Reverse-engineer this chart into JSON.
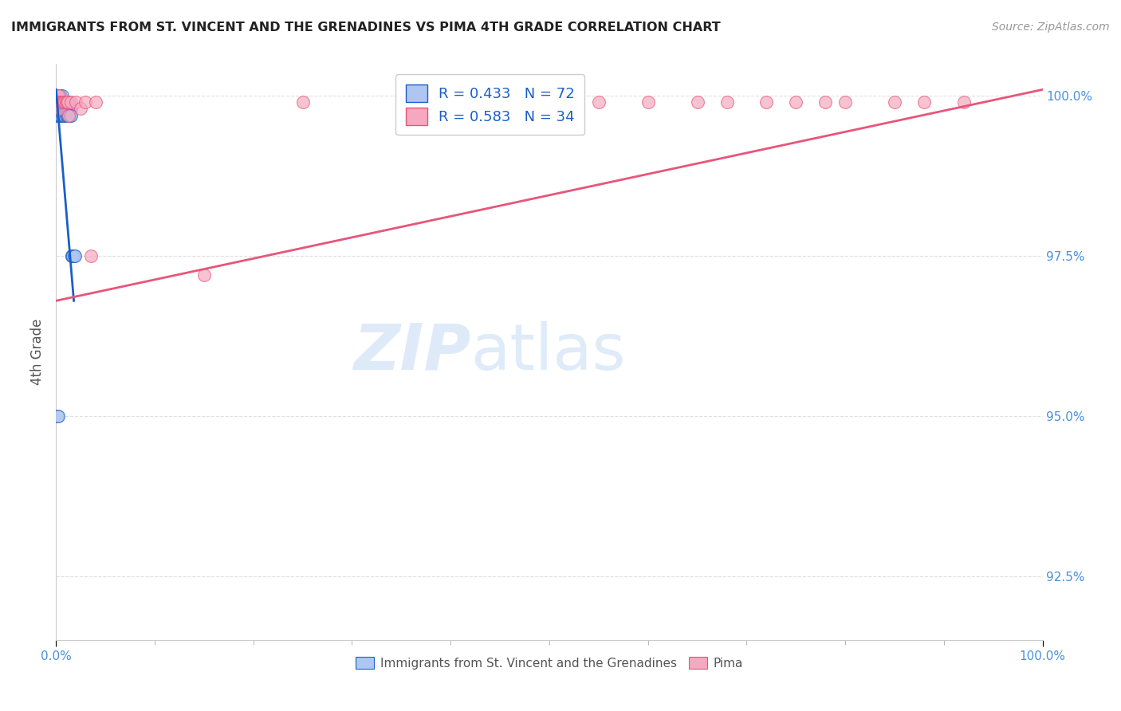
{
  "title": "IMMIGRANTS FROM ST. VINCENT AND THE GRENADINES VS PIMA 4TH GRADE CORRELATION CHART",
  "source": "Source: ZipAtlas.com",
  "ylabel": "4th Grade",
  "xlim": [
    0.0,
    1.0
  ],
  "ylim": [
    0.915,
    1.005
  ],
  "xtick_labels": [
    "0.0%",
    "100.0%"
  ],
  "ytick_labels": [
    "92.5%",
    "95.0%",
    "97.5%",
    "100.0%"
  ],
  "ytick_vals": [
    0.925,
    0.95,
    0.975,
    1.0
  ],
  "blue_R": 0.433,
  "blue_N": 72,
  "pink_R": 0.583,
  "pink_N": 34,
  "blue_color": "#aec6f0",
  "pink_color": "#f5a8c0",
  "blue_line_color": "#1a5fc8",
  "pink_line_color": "#e8557a",
  "blue_line_x0": 0.0,
  "blue_line_y0": 1.001,
  "blue_line_x1": 0.018,
  "blue_line_y1": 0.968,
  "pink_line_x0": 0.0,
  "pink_line_y0": 0.968,
  "pink_line_x1": 1.0,
  "pink_line_y1": 1.001,
  "blue_scatter_x": [
    0.001,
    0.001,
    0.001,
    0.001,
    0.001,
    0.002,
    0.002,
    0.002,
    0.002,
    0.002,
    0.002,
    0.003,
    0.003,
    0.003,
    0.003,
    0.003,
    0.003,
    0.004,
    0.004,
    0.004,
    0.004,
    0.004,
    0.005,
    0.005,
    0.005,
    0.005,
    0.006,
    0.006,
    0.006,
    0.006,
    0.007,
    0.007,
    0.007,
    0.008,
    0.008,
    0.008,
    0.009,
    0.009,
    0.009,
    0.01,
    0.01,
    0.01,
    0.011,
    0.011,
    0.012,
    0.012,
    0.013,
    0.013,
    0.014,
    0.015,
    0.001,
    0.002,
    0.003,
    0.004,
    0.005,
    0.006,
    0.007,
    0.008,
    0.009,
    0.01,
    0.011,
    0.012,
    0.013,
    0.014,
    0.015,
    0.016,
    0.016,
    0.017,
    0.018,
    0.019,
    0.001,
    0.002
  ],
  "blue_scatter_y": [
    1.0,
    1.0,
    1.0,
    1.0,
    0.999,
    1.0,
    1.0,
    1.0,
    0.999,
    0.999,
    0.998,
    1.0,
    1.0,
    0.999,
    0.999,
    0.998,
    0.997,
    1.0,
    0.999,
    0.999,
    0.998,
    0.997,
    1.0,
    0.999,
    0.999,
    0.998,
    1.0,
    0.999,
    0.999,
    0.998,
    0.999,
    0.999,
    0.998,
    0.999,
    0.999,
    0.998,
    0.999,
    0.999,
    0.998,
    0.999,
    0.999,
    0.998,
    0.999,
    0.998,
    0.999,
    0.998,
    0.999,
    0.998,
    0.998,
    0.998,
    0.997,
    0.997,
    0.997,
    0.997,
    0.997,
    0.997,
    0.997,
    0.997,
    0.997,
    0.997,
    0.997,
    0.997,
    0.997,
    0.997,
    0.997,
    0.975,
    0.975,
    0.975,
    0.975,
    0.975,
    0.95,
    0.95
  ],
  "pink_scatter_x": [
    0.001,
    0.002,
    0.002,
    0.003,
    0.003,
    0.004,
    0.005,
    0.006,
    0.007,
    0.008,
    0.009,
    0.01,
    0.011,
    0.012,
    0.013,
    0.015,
    0.02,
    0.025,
    0.03,
    0.035,
    0.04,
    0.15,
    0.25,
    0.55,
    0.6,
    0.65,
    0.68,
    0.72,
    0.75,
    0.78,
    0.8,
    0.85,
    0.88,
    0.92
  ],
  "pink_scatter_y": [
    1.0,
    1.0,
    0.999,
    1.0,
    0.999,
    0.998,
    0.999,
    0.999,
    0.999,
    0.999,
    0.999,
    0.999,
    0.999,
    0.999,
    0.997,
    0.999,
    0.999,
    0.998,
    0.999,
    0.975,
    0.999,
    0.972,
    0.999,
    0.999,
    0.999,
    0.999,
    0.999,
    0.999,
    0.999,
    0.999,
    0.999,
    0.999,
    0.999,
    0.999
  ],
  "watermark_text": "ZIPatlas",
  "background_color": "#ffffff",
  "grid_color": "#e0e0e0"
}
